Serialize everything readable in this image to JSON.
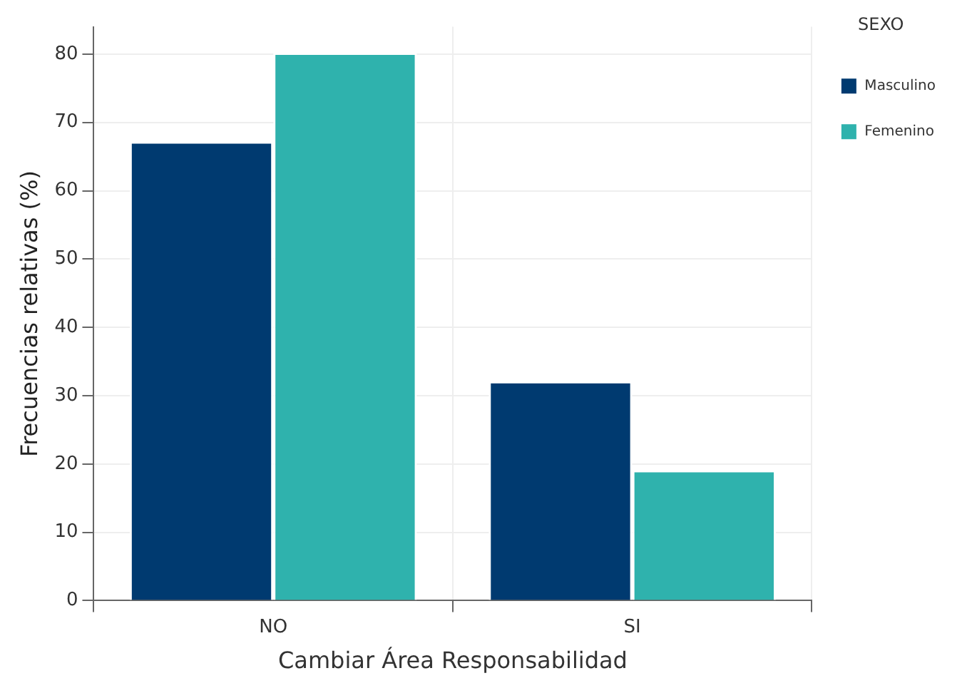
{
  "chart_data": {
    "type": "bar",
    "xlabel": "Cambiar Área Responsabilidad",
    "ylabel": "Frecuencias relativas (%)",
    "legend_title": "SEXO",
    "categories": [
      "NO",
      "SI"
    ],
    "series": [
      {
        "name": "Masculino",
        "color": "#003a70",
        "values": [
          67.2,
          32.1
        ]
      },
      {
        "name": "Femenino",
        "color": "#2fb2ad",
        "values": [
          80.2,
          19.1
        ]
      }
    ],
    "ylim": [
      0,
      84
    ],
    "yticks": [
      0,
      10,
      20,
      30,
      40,
      50,
      60,
      70,
      80
    ],
    "grid": true,
    "legend": "top right"
  }
}
